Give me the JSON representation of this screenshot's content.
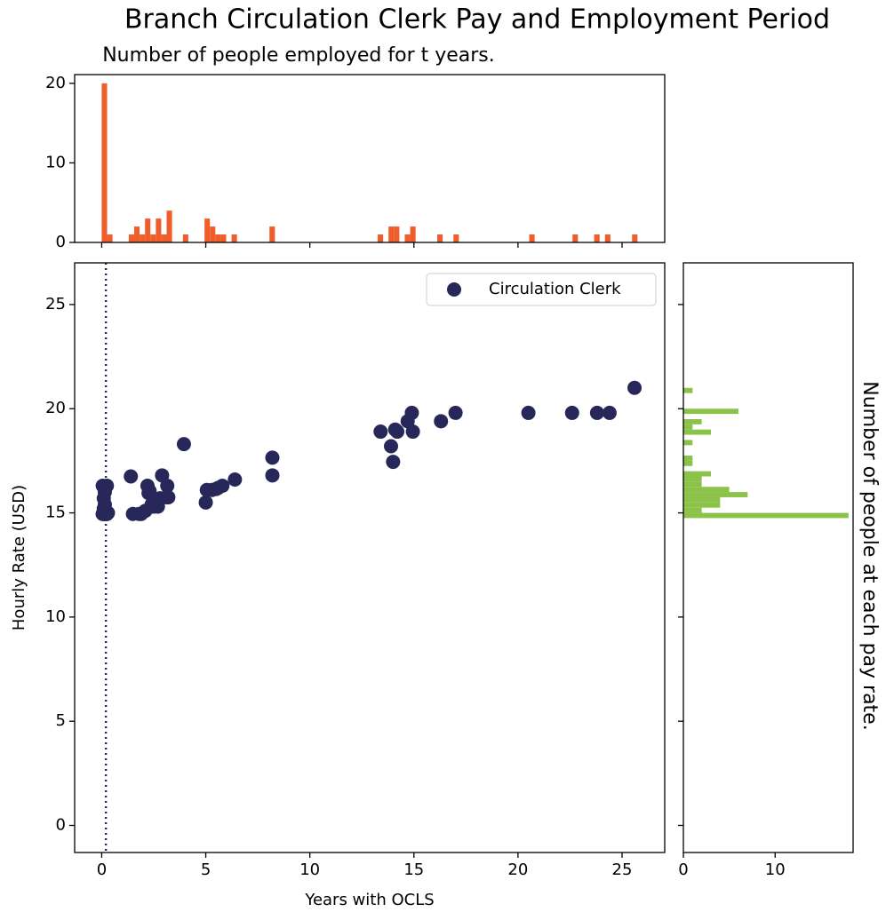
{
  "title": "Branch Circulation Clerk Pay and Employment Period",
  "chart_data": [
    {
      "type": "scatter",
      "xlabel": "Years with OCLS",
      "ylabel": "Hourly Rate (USD)",
      "xlim": [
        -1.3,
        27.05
      ],
      "ylim": [
        -1.3,
        27
      ],
      "xticks": [
        0,
        5,
        10,
        15,
        20,
        25
      ],
      "yticks": [
        0,
        5,
        10,
        15,
        20,
        25
      ],
      "legend": "upper right",
      "vline": 0.2,
      "vline_color": "#2b2d5e",
      "series": [
        {
          "name": "Circulation Clerk",
          "color": "#272859",
          "x": [
            0.05,
            0.25,
            0.15,
            0.1,
            0.15,
            0.1,
            0.2,
            0.05,
            0.1,
            0.15,
            0.2,
            0.25,
            0.05,
            0.1,
            0.15,
            0.2,
            0.25,
            0.1,
            0.15,
            0.2,
            0.3,
            1.4,
            1.5,
            1.8,
            1.9,
            2.1,
            2.2,
            2.25,
            2.3,
            2.4,
            2.5,
            2.6,
            2.7,
            2.8,
            2.9,
            3.1,
            3.15,
            3.2,
            3.95,
            5.0,
            5.05,
            5.3,
            5.5,
            5.6,
            5.8,
            6.4,
            8.2,
            8.2,
            13.4,
            13.9,
            14.0,
            14.1,
            14.2,
            14.7,
            14.9,
            14.95,
            16.3,
            17.0,
            20.5,
            22.6,
            23.8,
            24.4,
            25.6
          ],
          "values": [
            16.3,
            16.3,
            16.0,
            15.7,
            15.4,
            15.2,
            15.1,
            14.95,
            14.95,
            14.95,
            14.95,
            14.95,
            14.95,
            14.95,
            14.95,
            14.95,
            14.95,
            14.95,
            14.95,
            14.95,
            15.0,
            16.75,
            14.95,
            14.95,
            14.95,
            15.1,
            16.3,
            15.95,
            16.05,
            15.4,
            15.3,
            15.65,
            15.3,
            15.7,
            16.8,
            15.75,
            16.3,
            15.75,
            18.3,
            15.5,
            16.1,
            16.1,
            16.15,
            16.2,
            16.3,
            16.6,
            17.65,
            16.8,
            18.9,
            18.2,
            17.45,
            19.0,
            18.9,
            19.4,
            19.8,
            18.9,
            19.4,
            19.8,
            19.8,
            19.8,
            19.8,
            19.8,
            21.0
          ]
        }
      ]
    },
    {
      "type": "histogram",
      "title": "Number of people employed for t years.",
      "color": "#f05d2c",
      "xlim": [
        -1.3,
        27.05
      ],
      "ylim": [
        0,
        21.1
      ],
      "xticks": [
        0,
        5,
        10,
        15,
        20,
        25
      ],
      "yticks": [
        0,
        10,
        20
      ],
      "show_xtick_labels": false,
      "bins": [
        0,
        0.26,
        0.52,
        1.3,
        1.56,
        1.82,
        2.08,
        2.34,
        2.6,
        2.86,
        3.12,
        3.38,
        3.9,
        4.16,
        4.94,
        5.2,
        5.46,
        5.72,
        5.98,
        6.24,
        6.5,
        8.06,
        8.32,
        13.26,
        13.52,
        13.78,
        14.04,
        14.3,
        14.56,
        14.82,
        15.08,
        16.12,
        16.38,
        16.9,
        17.16,
        20.54,
        20.8,
        22.62,
        22.88,
        23.66,
        23.92,
        24.18,
        24.44,
        25.48,
        25.74
      ],
      "values": [
        20,
        1,
        0,
        1,
        2,
        1,
        3,
        1,
        3,
        1,
        4,
        0,
        1,
        0,
        3,
        2,
        1,
        1,
        0,
        1,
        0,
        2,
        0,
        1,
        0,
        2,
        2,
        0,
        1,
        2,
        0,
        1,
        0,
        1,
        0,
        1,
        0,
        1,
        0,
        1,
        0,
        1,
        0,
        1
      ]
    },
    {
      "type": "histogram",
      "orientation": "horizontal",
      "ylabel": "Number of people at each pay rate.",
      "ylabel_position": "right",
      "color": "#8bc34a",
      "xlim": [
        0,
        18.5
      ],
      "ylim": [
        -1.3,
        27
      ],
      "xticks": [
        0,
        10
      ],
      "yticks": [
        0,
        5,
        10,
        15,
        20,
        25
      ],
      "show_ytick_labels": false,
      "bins": [
        14.75,
        15,
        15.25,
        15.5,
        15.75,
        16,
        16.25,
        16.5,
        16.75,
        17,
        17.25,
        17.5,
        17.75,
        18.25,
        18.5,
        18.75,
        19,
        19.25,
        19.5,
        19.75,
        20,
        20.75,
        21
      ],
      "values": [
        18,
        2,
        4,
        4,
        7,
        5,
        2,
        2,
        3,
        0,
        1,
        1,
        0,
        1,
        0,
        3,
        1,
        2,
        0,
        6,
        0,
        1
      ]
    }
  ]
}
